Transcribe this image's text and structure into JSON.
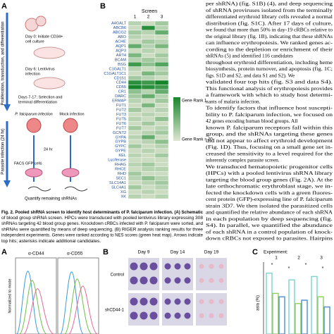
{
  "panel_a": {
    "label": "A",
    "side_label": "Proliferation, transduction, and differentiation",
    "steps": [
      "Day 0: Initiate CD34+",
      "cell culture",
      "Day 6: Lentivirus",
      "infection",
      "Days 7-17: Selection and",
      "terminal differentiation"
    ],
    "infection_label": "P. falciparum infection",
    "mock_label": "Mock infection",
    "time": "24 hr",
    "facs": "FACS GFP cells",
    "quantify": "Quantify remaining shRNAs",
    "parasite_side_label": "Parasite infection (24 hr)"
  },
  "panel_b": {
    "label": "B",
    "header": "Screen",
    "screens": [
      "1",
      "2",
      "3"
    ],
    "genes": [
      "A4GALT",
      "ABCB6",
      "ABCG2",
      "ABO",
      "ACHE",
      "AQP1",
      "AQP3",
      "ART4",
      "BCAM",
      "BSG",
      "C1GALT1",
      "C1GALT1C1",
      "CD151",
      "CD44",
      "CD55",
      "CR1",
      "DARC",
      "ERMAP",
      "FUT1",
      "FUT2",
      "FUT3",
      "FUT5",
      "FUT6",
      "FUT7",
      "GCNT2",
      "GYPA",
      "GYPB",
      "GYPC",
      "GYPE",
      "KEL",
      "Luciferase",
      "RHAG",
      "RHCE",
      "RHD",
      "SEC1",
      "SLC14A1",
      "SLC4A1",
      "XG",
      "XK"
    ],
    "heatmap": [
      [
        0.2,
        0.1,
        0.3
      ],
      [
        0.1,
        0.9,
        0.2
      ],
      [
        0.3,
        0.2,
        0.6
      ],
      [
        0.2,
        0.1,
        0.1
      ],
      [
        0.1,
        0.3,
        0.2
      ],
      [
        0.6,
        0.2,
        0.5
      ],
      [
        0.1,
        0.2,
        0.1
      ],
      [
        0.5,
        0.1,
        0.3
      ],
      [
        0.2,
        0.3,
        0.2
      ],
      [
        0.8,
        0.4,
        0.7
      ],
      [
        0.2,
        0.1,
        0.2
      ],
      [
        0.1,
        0.5,
        0.3
      ],
      [
        0.3,
        0.2,
        0.1
      ],
      [
        0.9,
        0.8,
        1.0
      ],
      [
        1.0,
        0.9,
        0.8
      ],
      [
        0.4,
        0.2,
        0.6
      ],
      [
        0.3,
        0.6,
        0.2
      ],
      [
        0.2,
        0.1,
        0.3
      ],
      [
        0.1,
        0.5,
        0.1
      ],
      [
        0.3,
        0.1,
        0.2
      ],
      [
        0.1,
        0.2,
        0.1
      ],
      [
        0.2,
        0.1,
        0.4
      ],
      [
        0.1,
        0.3,
        0.1
      ],
      [
        0.3,
        0.1,
        0.2
      ],
      [
        0.1,
        0.2,
        0.3
      ],
      [
        0.2,
        0.6,
        0.1
      ],
      [
        0.1,
        0.2,
        0.4
      ],
      [
        0.3,
        0.1,
        0.2
      ],
      [
        0.1,
        0.2,
        0.1
      ],
      [
        0.2,
        0.1,
        0.3
      ],
      [
        0.1,
        0.1,
        0.1
      ],
      [
        0.2,
        0.3,
        0.1
      ],
      [
        0.1,
        0.2,
        0.2
      ],
      [
        0.3,
        0.1,
        0.1
      ],
      [
        0.2,
        0.4,
        0.2
      ],
      [
        0.1,
        0.2,
        0.3
      ],
      [
        0.3,
        0.1,
        0.2
      ],
      [
        0.1,
        0.2,
        0.1
      ],
      [
        0.2,
        0.1,
        0.2
      ]
    ],
    "color_high": "#16862c",
    "color_low": "#dfe6d2",
    "legend_high": "Gene Rank 1",
    "legend_low": "Gene Rank > 20"
  },
  "caption": [
    "Fig. 2. Pooled shRNA screen to identify host determinants of P. falciparum infection. (A) Schematic",
    "of blood group shRNA screen. HPCs were transduced with pooled lentivirus library expressing 308",
    "shRNAs targeting 42 blood group genes. Knockdown cRBCs infected with P. falciparum were sorted, and",
    "shRNAs were quantified by means of deep sequencing. (B) RIGER analysis ranking results for three",
    "independent experiments. Genes were ranked according to NES scores (green heat map). Arrows indicate",
    "top hits; asterisks indicate additional candidates."
  ],
  "body_text": [
    "per shRNA) (fig. S1B) (4), and deep sequencing",
    "of shRNA proviruses isolated from the terminally",
    "differentiated erythroid library cells revealed a normal",
    "distribution (fig. S1C). After 17 days of culture,",
    "we found that more than 50% in day-19 cRBCs relative to",
    "the original library (fig. 1B), indicating that these shRNAs",
    "can influence erythropoiesis. We ranked genes ac-",
    "cording to the depletion or enrichment of their",
    "shRNAs (5) and identified 116 candidates",
    "throughout erythroid differentiation, including heme",
    "biosynthesis, protein turnover, and apoptosis (fig. 1C;",
    "figs. S1D and S2, and data S1 and S2). We",
    "validated four top hits (fig. S3 and data S4).",
    "This functional analysis of erythropoiesis provides",
    "a framework with which to study host determi-",
    "nants of malaria infection.",
    "   To identify factors that influence host suscepti-",
    "bility to P. falciparum infection, we focused on",
    "42 genes encoding human blood groups. All",
    "known P. falciparum receptors fall within this",
    "group, and the shRNAs targeting these genes",
    "did not appear to affect erythroid development",
    "(Fig. 1D). Thus, focusing on a small gene set in-",
    "creased the sensitivity to a level required for the",
    "inherently complex parasite screen.",
    "   We transduced hematopoietic progenitor cells",
    "(HPCs) with a pooled lentivirus shRNA library",
    "targeting the blood group genes (Fig. 2A). At the",
    "late orthochromatic erythroblast stage, we in-",
    "fected the knockdown cells with a green fluores-",
    "cent protein (GFP)-expressing line of P. falciparum",
    "strain 3D7. We then isolated the parasitized cells",
    "and quantified the relative abundance of each shRNA",
    "in each population by deep sequencing (fig.",
    "S4). In parallel, we quantified the abundance",
    "of each shRNA in a control population of knock-",
    "down cRBCs not exposed to parasites. Hairpins"
  ],
  "bottom_a": {
    "label": "A",
    "markers": [
      "α-CD44",
      "α-CD55"
    ],
    "y_label": "Normalized to mode"
  },
  "bottom_b": {
    "label": "B",
    "days": [
      "Day 9",
      "Day 14",
      "Day 19"
    ],
    "rows": [
      "Control",
      "shCD44-1"
    ]
  },
  "bottom_c": {
    "label": "C",
    "experiment_label": "Experiment:",
    "experiments": [
      "1",
      "2",
      "3"
    ],
    "y_label": "asia (%)",
    "ylim": [
      0,
      100
    ],
    "series": [
      {
        "color": "#7ad3cf",
        "values": [
          90,
          80,
          85
        ]
      },
      {
        "color": "#8fcf5a",
        "values": [
          60,
          45,
          55
        ]
      },
      {
        "color": "#4d8fd0",
        "values": [
          55,
          50,
          40
        ]
      }
    ],
    "annotations": [
      "*",
      "*",
      "*",
      "*"
    ]
  }
}
